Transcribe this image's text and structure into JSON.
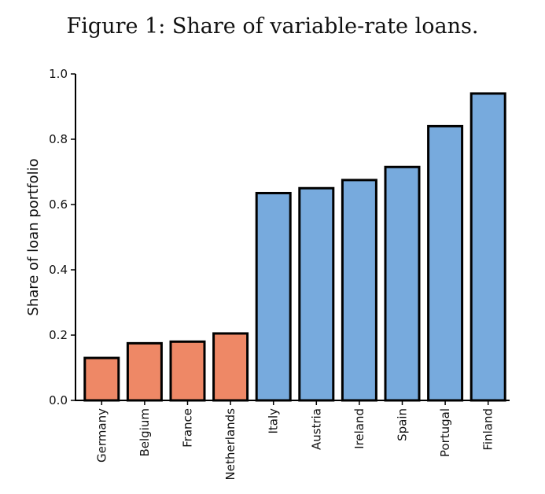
{
  "title": "Figure 1: Share of variable-rate loans.",
  "chart_data": {
    "type": "bar",
    "ylabel": "Share of loan portfolio",
    "xlabel": "",
    "ylim": [
      0,
      1.0
    ],
    "yticks": [
      "0.0",
      "0.2",
      "0.4",
      "0.6",
      "0.8",
      "1.0"
    ],
    "grid": false,
    "legend": "none",
    "colors": {
      "fixed_rate": "#ee8866",
      "variable_rate": "#77aadd",
      "edge": "#000000"
    },
    "categories": [
      "Germany",
      "Belgium",
      "France",
      "Netherlands",
      "Italy",
      "Austria",
      "Ireland",
      "Spain",
      "Portugal",
      "Finland"
    ],
    "values": [
      0.13,
      0.175,
      0.18,
      0.205,
      0.635,
      0.65,
      0.675,
      0.715,
      0.84,
      0.94
    ],
    "bar_groups": [
      "fixed_rate",
      "fixed_rate",
      "fixed_rate",
      "fixed_rate",
      "variable_rate",
      "variable_rate",
      "variable_rate",
      "variable_rate",
      "variable_rate",
      "variable_rate"
    ]
  }
}
